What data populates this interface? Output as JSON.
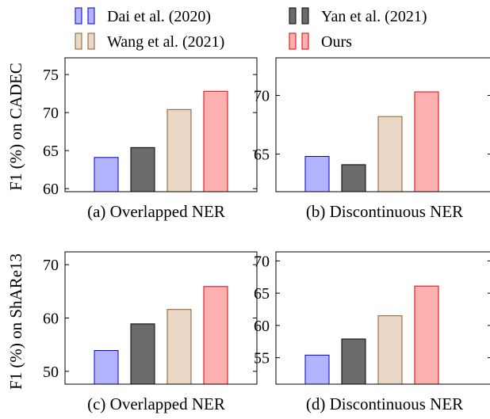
{
  "legend": {
    "items": [
      {
        "label": "Dai et al. (2020)",
        "color": "#b3b3ff",
        "stroke": "#0000cc"
      },
      {
        "label": "Yan et al. (2021)",
        "color": "#6b6b6b",
        "stroke": "#000000"
      },
      {
        "label": "Wang et al. (2021)",
        "color": "#ead8c6",
        "stroke": "#8a5a2e"
      },
      {
        "label": "Ours",
        "color": "#ffb0b0",
        "stroke": "#e00000"
      }
    ]
  },
  "row_labels": [
    "F1 (%) on CADEC",
    "F1 (%) on ShARe13"
  ],
  "chart_data": [
    {
      "type": "bar",
      "caption": "(a) Overlapped NER",
      "categories": [
        "Dai et al. (2020)",
        "Yan et al. (2021)",
        "Wang et al. (2021)",
        "Ours"
      ],
      "values": [
        64.1,
        65.4,
        70.4,
        72.8
      ],
      "ylim": [
        59.6,
        77.2
      ],
      "yticks": [
        60,
        65,
        70,
        75
      ],
      "ylabel": "F1 (%) on CADEC"
    },
    {
      "type": "bar",
      "caption": "(b) Discontinuous NER",
      "categories": [
        "Dai et al. (2020)",
        "Yan et al. (2021)",
        "Wang et al. (2021)",
        "Ours"
      ],
      "values": [
        64.8,
        64.1,
        68.2,
        70.3
      ],
      "ylim": [
        61.8,
        73.2
      ],
      "yticks": [
        65,
        70
      ],
      "ylabel": ""
    },
    {
      "type": "bar",
      "caption": "(c) Overlapped NER",
      "categories": [
        "Dai et al. (2020)",
        "Yan et al. (2021)",
        "Wang et al. (2021)",
        "Ours"
      ],
      "values": [
        53.9,
        58.9,
        61.6,
        65.9
      ],
      "ylim": [
        47.6,
        72.4
      ],
      "yticks": [
        50,
        60,
        70
      ],
      "ylabel": "F1 (%) on ShARe13"
    },
    {
      "type": "bar",
      "caption": "(d) Discontinuous NER",
      "categories": [
        "Dai et al. (2020)",
        "Yan et al. (2021)",
        "Wang et al. (2021)",
        "Ours"
      ],
      "values": [
        55.4,
        57.9,
        61.5,
        66.1
      ],
      "ylim": [
        50.9,
        71.4
      ],
      "yticks": [
        55,
        60,
        65,
        70
      ],
      "ylabel": ""
    }
  ]
}
